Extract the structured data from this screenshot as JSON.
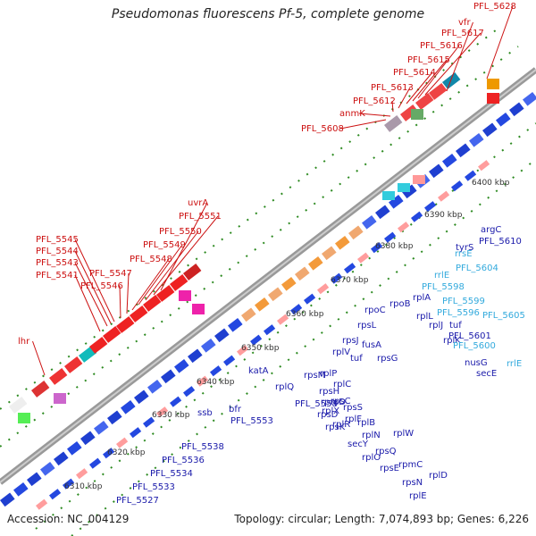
{
  "title": "Pseudomonas fluorescens Pf-5, complete genome",
  "footer": {
    "accession": "Accession: NC_004129",
    "summary": "Topology: circular; Length: 7,074,893 bp; Genes: 6,226"
  },
  "colors": {
    "forward_label": "#cc1111",
    "reverse_label": "#1a1aaa",
    "rna_label": "#33aadd",
    "backbone": "#888888",
    "tick": "#2e8b22"
  },
  "scale_marks": [
    "6310 kbp",
    "6320 kbp",
    "6330 kbp",
    "6340 kbp",
    "6350 kbp",
    "6360 kbp",
    "6370 kbp",
    "6380 kbp",
    "6390 kbp",
    "6400 kbp"
  ],
  "forward_labels": [
    "vfr",
    "PFL_5628",
    "PFL_5617",
    "PFL_5616",
    "PFL_5615",
    "PFL_5614",
    "PFL_5613",
    "PFL_5612",
    "anmK",
    "PFL_5608",
    "uvrA",
    "PFL_5551",
    "PFL_5550",
    "PFL_5549",
    "PFL_5548",
    "PFL_5545",
    "PFL_5544",
    "PFL_5543",
    "PFL_5547",
    "PFL_5541",
    "PFL_5546",
    "lhr"
  ],
  "reverse_labels": [
    "argC",
    "PFL_5610",
    "tyrS",
    "rpoC",
    "rpoB",
    "rplA",
    "rplL",
    "rpsL",
    "fusA",
    "tuf",
    "rpsJ",
    "rplV",
    "rpsG",
    "rpsM",
    "rplP",
    "rplC",
    "rpsH",
    "rpmD",
    "rpsC",
    "rplQ",
    "PFL_5558",
    "rplX",
    "rpsS",
    "rplR",
    "rpsD",
    "rplF",
    "rplB",
    "rpsK",
    "rplN",
    "rplW",
    "secY",
    "rpsQ",
    "rplO",
    "rpsE",
    "rpmC",
    "rplD",
    "rpsN",
    "rplE",
    "katA",
    "bfr",
    "PFL_5553",
    "ssb",
    "PFL_5538",
    "PFL_5536",
    "PFL_5534",
    "PFL_5533",
    "PFL_5527",
    "rplK",
    "nusG",
    "secE",
    "rplJ",
    "PFL_5601",
    "tuf"
  ],
  "rna_labels": [
    "rrsE",
    "rrlE",
    "PFL_5604",
    "PFL_5598",
    "PFL_5599",
    "PFL_5596",
    "PFL_5605",
    "PFL_5600",
    "rrlE"
  ]
}
